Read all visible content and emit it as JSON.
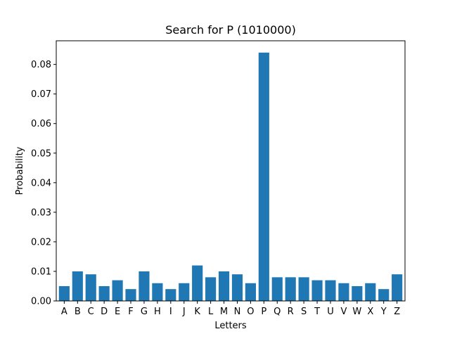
{
  "chart_data": {
    "type": "bar",
    "title": "Search for P (1010000)",
    "xlabel": "Letters",
    "ylabel": "Probability",
    "categories": [
      "A",
      "B",
      "C",
      "D",
      "E",
      "F",
      "G",
      "H",
      "I",
      "J",
      "K",
      "L",
      "M",
      "N",
      "O",
      "P",
      "Q",
      "R",
      "S",
      "T",
      "U",
      "V",
      "W",
      "X",
      "Y",
      "Z"
    ],
    "values": [
      0.005,
      0.01,
      0.009,
      0.005,
      0.007,
      0.004,
      0.01,
      0.006,
      0.004,
      0.006,
      0.012,
      0.008,
      0.01,
      0.009,
      0.006,
      0.084,
      0.008,
      0.008,
      0.008,
      0.007,
      0.007,
      0.006,
      0.005,
      0.006,
      0.004,
      0.009
    ],
    "ylim": [
      0,
      0.088
    ],
    "yticks": [
      0.0,
      0.01,
      0.02,
      0.03,
      0.04,
      0.05,
      0.06,
      0.07,
      0.08
    ],
    "ytick_labels": [
      "0.00",
      "0.01",
      "0.02",
      "0.03",
      "0.04",
      "0.05",
      "0.06",
      "0.07",
      "0.08"
    ],
    "grid": false,
    "bar_color": "#1f77b4"
  }
}
